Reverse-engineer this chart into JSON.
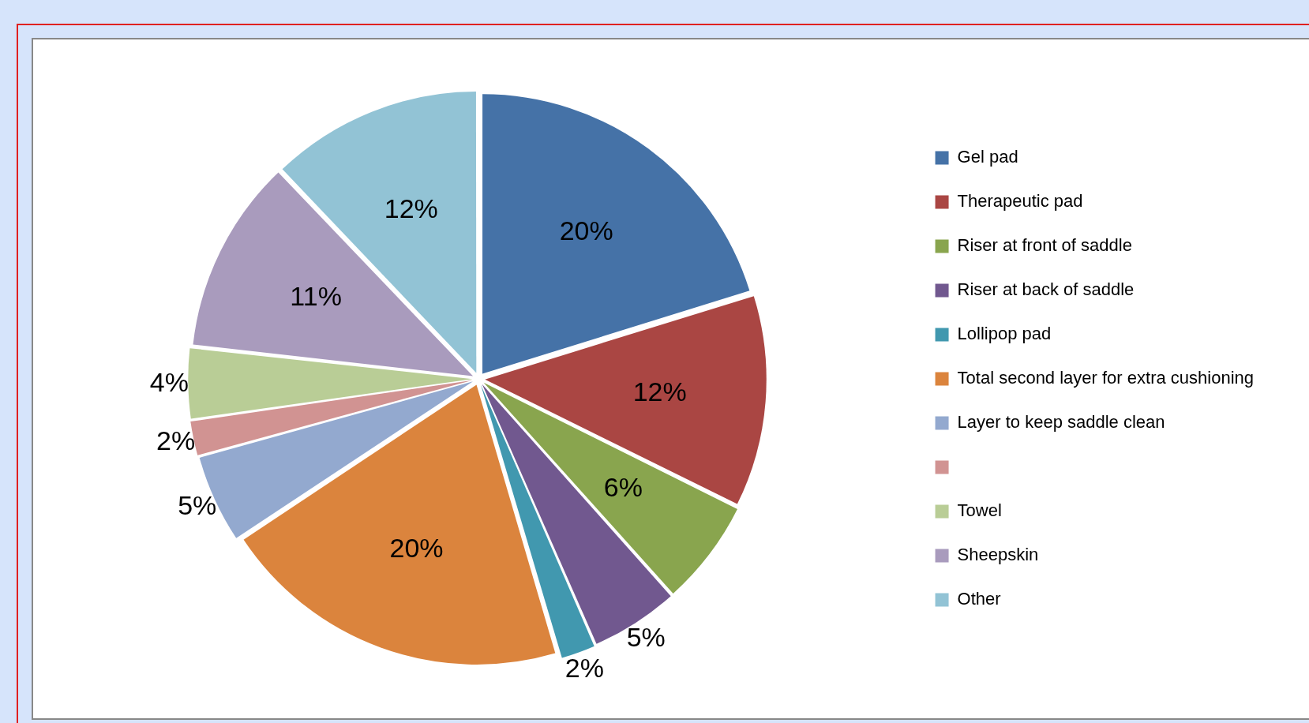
{
  "chart_data": {
    "type": "pie",
    "categories": [
      "Gel pad",
      "Therapeutic pad",
      "Riser at front of saddle",
      "Riser at back of saddle",
      "Lollipop pad",
      "Total second layer for extra cushioning",
      "Layer to keep saddle clean",
      null,
      "Towel",
      "Sheepskin",
      "Other"
    ],
    "values": [
      20,
      12,
      6,
      5,
      2,
      20,
      5,
      2,
      4,
      11,
      12
    ],
    "colors": [
      "#4572a7",
      "#aa4643",
      "#89a54e",
      "#71588f",
      "#4198af",
      "#db843d",
      "#93a9cf",
      "#d19392",
      "#b9cd96",
      "#a99bbd",
      "#92c3d5"
    ],
    "value_labels": [
      "20%",
      "12%",
      "6%",
      "5%",
      "2%",
      "20%",
      "5%",
      "2%",
      "4%",
      "11%",
      "12%"
    ],
    "legend": "right"
  }
}
